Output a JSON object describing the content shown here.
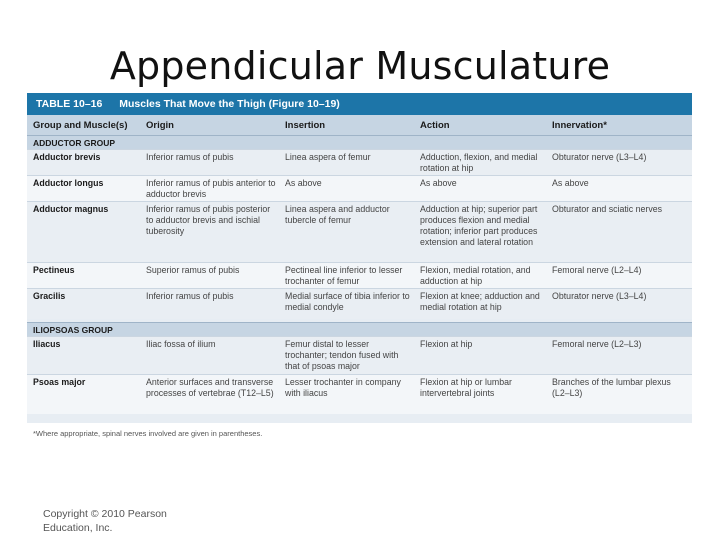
{
  "slide": {
    "title": "Appendicular Musculature"
  },
  "table": {
    "number": "TABLE 10–16",
    "title": "Muscles That Move the Thigh (Figure 10–19)",
    "columns": [
      "Group and Muscle(s)",
      "Origin",
      "Insertion",
      "Action",
      "Innervation*"
    ],
    "groups": [
      {
        "name": "ADDUCTOR GROUP",
        "rows": [
          {
            "muscle": "Adductor brevis",
            "origin": "Inferior ramus of pubis",
            "insertion": "Linea aspera of femur",
            "action": "Adduction, flexion, and medial rotation at hip",
            "innervation": "Obturator nerve (L3–L4)"
          },
          {
            "muscle": "Adductor longus",
            "origin": "Inferior ramus of pubis anterior to adductor brevis",
            "insertion": "As above",
            "action": "As above",
            "innervation": "As above"
          },
          {
            "muscle": "Adductor magnus",
            "origin": "Inferior ramus of pubis posterior to adductor brevis and ischial tuberosity",
            "insertion": "Linea aspera and adductor tubercle of femur",
            "action": "Adduction at hip; superior part produces flexion and medial rotation; inferior part produces extension and lateral rotation",
            "innervation": "Obturator and sciatic nerves"
          },
          {
            "muscle": "Pectineus",
            "origin": "Superior ramus of pubis",
            "insertion": "Pectineal line inferior to lesser trochanter of femur",
            "action": "Flexion, medial rotation, and adduction at hip",
            "innervation": "Femoral nerve (L2–L4)"
          },
          {
            "muscle": "Gracilis",
            "origin": "Inferior ramus of pubis",
            "insertion": "Medial surface of tibia inferior to medial condyle",
            "action": "Flexion at knee; adduction and medial rotation at hip",
            "innervation": "Obturator nerve (L3–L4)"
          }
        ]
      },
      {
        "name": "ILIOPSOAS GROUP",
        "rows": [
          {
            "muscle": "Iliacus",
            "origin": "Iliac fossa of ilium",
            "insertion": "Femur distal to lesser trochanter; tendon fused with that of psoas major",
            "action": "Flexion at hip",
            "innervation": "Femoral nerve (L2–L3)"
          },
          {
            "muscle": "Psoas major",
            "origin": "Anterior surfaces and transverse processes of vertebrae (T12–L5)",
            "insertion": "Lesser trochanter in company with iliacus",
            "action": "Flexion at hip or lumbar intervertebral joints",
            "innervation": "Branches of the lumbar plexus (L2–L3)"
          }
        ]
      }
    ],
    "footnote": "*Where appropriate, spinal nerves involved are given in parentheses."
  },
  "copyright": "Copyright © 2010 Pearson Education, Inc."
}
